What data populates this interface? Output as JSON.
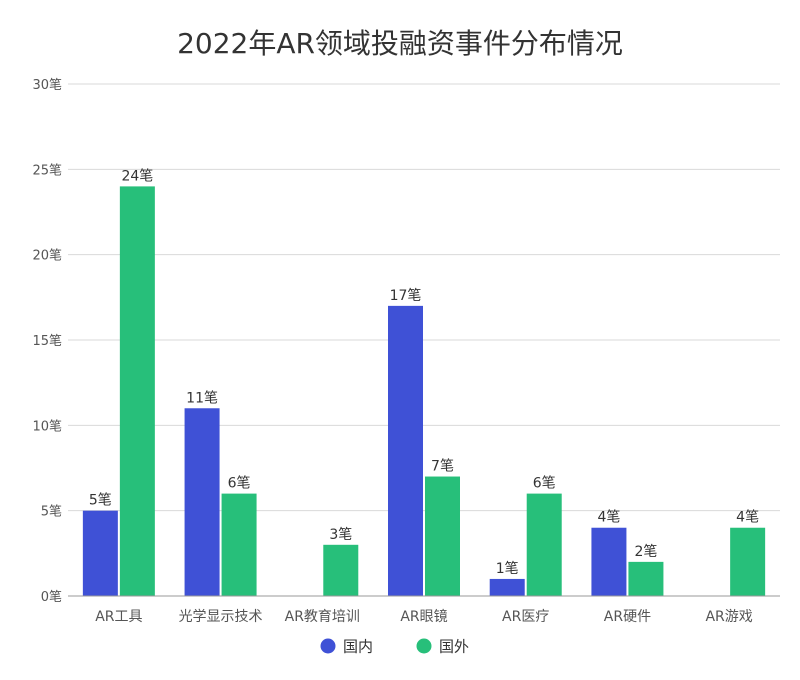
{
  "chart_data": {
    "type": "bar",
    "title": "2022年AR领域投融资事件分布情况",
    "categories": [
      "AR工具",
      "光学显示技术",
      "AR教育培训",
      "AR眼镜",
      "AR医疗",
      "AR硬件",
      "AR游戏"
    ],
    "series": [
      {
        "name": "国内",
        "color": "#3f51d6",
        "values": [
          5,
          11,
          null,
          17,
          1,
          4,
          null
        ],
        "labels": [
          "5笔",
          "11笔",
          "",
          "17笔",
          "1笔",
          "4笔",
          ""
        ]
      },
      {
        "name": "国外",
        "color": "#27bf7a",
        "values": [
          24,
          6,
          3,
          7,
          6,
          2,
          4
        ],
        "labels": [
          "24笔",
          "6笔",
          "3笔",
          "7笔",
          "6笔",
          "2笔",
          "4笔"
        ]
      }
    ],
    "yticks": [
      {
        "value": 0,
        "label": "0笔"
      },
      {
        "value": 5,
        "label": "5笔"
      },
      {
        "value": 10,
        "label": "10笔"
      },
      {
        "value": 15,
        "label": "15笔"
      },
      {
        "value": 20,
        "label": "20笔"
      },
      {
        "value": 25,
        "label": "25笔"
      },
      {
        "value": 30,
        "label": "30笔"
      }
    ],
    "ylim": [
      0,
      30
    ],
    "xlabel": "",
    "ylabel": "",
    "grid": true,
    "legend_position": "bottom-center"
  }
}
